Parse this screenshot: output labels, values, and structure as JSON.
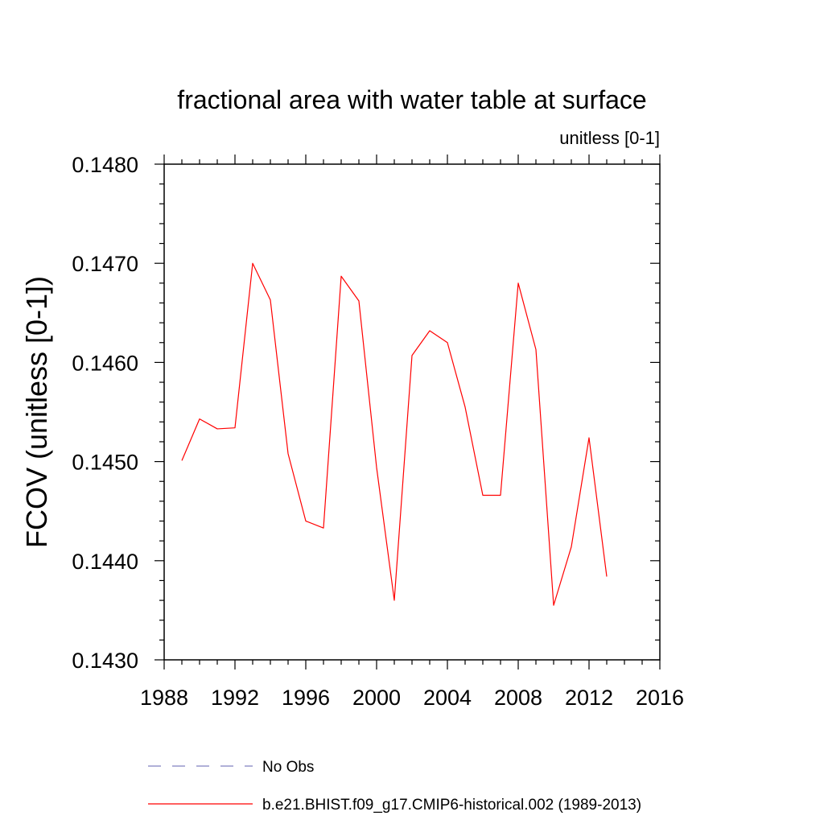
{
  "chart_data": {
    "type": "line",
    "title": "fractional area with water table at surface",
    "units_note": "unitless [0-1]",
    "xlabel": "",
    "ylabel": "FCOV  (unitless [0-1])",
    "xlim": [
      1988,
      2016
    ],
    "ylim": [
      0.143,
      0.148
    ],
    "x_ticks": [
      1988,
      1992,
      1996,
      2000,
      2004,
      2008,
      2012,
      2016
    ],
    "x_tick_labels": [
      "1988",
      "1992",
      "1996",
      "2000",
      "2004",
      "2008",
      "2012",
      "2016"
    ],
    "y_ticks": [
      0.143,
      0.144,
      0.145,
      0.146,
      0.147,
      0.148
    ],
    "y_tick_labels": [
      "0.1430",
      "0.1440",
      "0.1450",
      "0.1460",
      "0.1470",
      "0.1480"
    ],
    "grid": false,
    "legend_position": "bottom",
    "series": [
      {
        "name": "b.e21.BHIST.f09_g17.CMIP6-historical.002 (1989-2013)",
        "color": "#ff0000",
        "line_style": "solid",
        "x": [
          1989,
          1990,
          1991,
          1992,
          1993,
          1994,
          1995,
          1996,
          1997,
          1998,
          1999,
          2000,
          2001,
          2002,
          2003,
          2004,
          2005,
          2006,
          2007,
          2008,
          2009,
          2010,
          2011,
          2012,
          2013
        ],
        "y": [
          0.14501,
          0.14543,
          0.14533,
          0.14534,
          0.147,
          0.14663,
          0.14508,
          0.1444,
          0.14433,
          0.14687,
          0.14662,
          0.14494,
          0.1436,
          0.14607,
          0.14632,
          0.1462,
          0.14555,
          0.14466,
          0.14466,
          0.1468,
          0.14613,
          0.14355,
          0.14414,
          0.14524,
          0.14384
        ]
      }
    ],
    "legend": [
      {
        "label": "No Obs",
        "color": "#8080c0",
        "line_style": "dashed"
      },
      {
        "label": "b.e21.BHIST.f09_g17.CMIP6-historical.002 (1989-2013)",
        "color": "#ff0000",
        "line_style": "solid"
      }
    ]
  }
}
